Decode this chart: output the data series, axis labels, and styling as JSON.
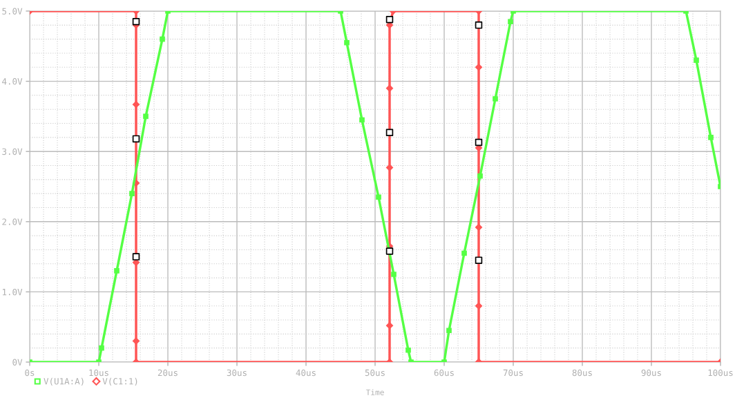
{
  "chart_data": {
    "type": "line",
    "xlabel": "Time",
    "xlim": [
      0,
      100
    ],
    "ylim": [
      0,
      5
    ],
    "xticks": [
      {
        "value": 0,
        "label": "0s"
      },
      {
        "value": 10,
        "label": "10us"
      },
      {
        "value": 20,
        "label": "20us"
      },
      {
        "value": 30,
        "label": "30us"
      },
      {
        "value": 40,
        "label": "40us"
      },
      {
        "value": 50,
        "label": "50us"
      },
      {
        "value": 60,
        "label": "60us"
      },
      {
        "value": 70,
        "label": "70us"
      },
      {
        "value": 80,
        "label": "80us"
      },
      {
        "value": 90,
        "label": "90us"
      },
      {
        "value": 100,
        "label": "100us"
      }
    ],
    "yticks": [
      {
        "value": 0,
        "label": "0V"
      },
      {
        "value": 1,
        "label": "1.0V"
      },
      {
        "value": 2,
        "label": "2.0V"
      },
      {
        "value": 3,
        "label": "3.0V"
      },
      {
        "value": 4,
        "label": "4.0V"
      },
      {
        "value": 5,
        "label": "5.0V"
      }
    ],
    "grid": true,
    "legend": "bottom left",
    "series": [
      {
        "name": "V(U1A:A)",
        "color": "#55ff44",
        "marker": "square",
        "x": [
          0,
          10,
          10.4,
          12.6,
          14.8,
          16.8,
          19.2,
          20,
          45,
          45.9,
          48.1,
          50.5,
          52.7,
          54.8,
          55.2,
          60,
          60.7,
          62.9,
          65.2,
          67.4,
          69.6,
          70,
          95,
          96.5,
          98.6,
          100
        ],
        "values": [
          0,
          0,
          0.2,
          1.3,
          2.4,
          3.5,
          4.6,
          5,
          5,
          4.55,
          3.45,
          2.35,
          1.25,
          0.17,
          0,
          0,
          0.45,
          1.55,
          2.65,
          3.75,
          4.85,
          5,
          5,
          4.3,
          3.2,
          2.5
        ]
      },
      {
        "name": "V(C1:1)",
        "color": "#ff5555",
        "marker": "diamond",
        "x": [
          0,
          15.4,
          15.4,
          15.4,
          15.4,
          15.4,
          15.4,
          15.4,
          52.1,
          52.1,
          52.1,
          52.1,
          52.1,
          52.1,
          52.6,
          65,
          65,
          65,
          65,
          65,
          65,
          65,
          100
        ],
        "values": [
          5,
          5,
          4.8,
          3.67,
          2.55,
          1.42,
          0.3,
          0,
          0,
          0.52,
          1.65,
          2.77,
          3.9,
          4.8,
          5,
          5,
          4.2,
          3.05,
          1.92,
          0.8,
          0,
          0,
          0
        ]
      },
      {
        "type": "scatter",
        "color": "#000000",
        "marker": "square",
        "x": [
          15.4,
          15.4,
          15.4,
          52.1,
          52.1,
          52.1,
          65,
          65,
          65
        ],
        "values": [
          4.85,
          3.18,
          1.5,
          4.88,
          3.27,
          1.58,
          4.8,
          3.13,
          1.45
        ]
      }
    ]
  }
}
